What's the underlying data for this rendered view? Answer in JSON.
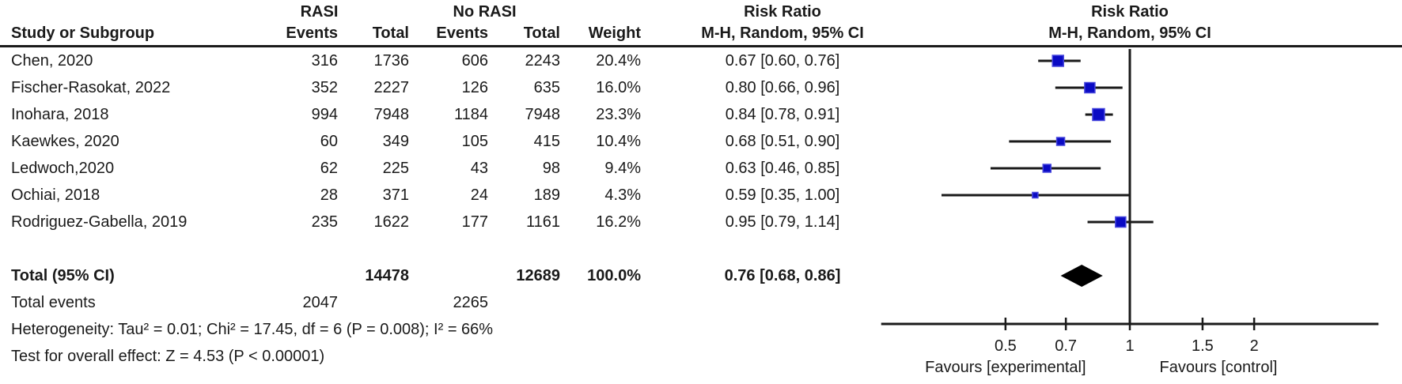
{
  "figure": {
    "headers": {
      "study_col": "Study or Subgroup",
      "group1": "RASI",
      "group2": "No RASI",
      "events": "Events",
      "total": "Total",
      "weight": "Weight",
      "rr_title": "Risk Ratio",
      "rr_method": "M-H, Random, 95% CI"
    },
    "footer": {
      "total_events_label": "Total events",
      "total_events_rasi": "2047",
      "total_events_norasi": "2265",
      "heterogeneity": "Heterogeneity: Tau² = 0.01; Chi² = 17.45, df = 6 (P = 0.008); I² = 66%",
      "overall_effect": "Test for overall effect: Z = 4.53 (P < 0.00001)"
    }
  },
  "chart_data": {
    "type": "forest",
    "effect_measure": "Risk Ratio",
    "method": "M-H, Random, 95% CI",
    "x_axis": {
      "scale": "log",
      "ticks": [
        0.5,
        0.7,
        1,
        1.5,
        2
      ],
      "range": [
        0.25,
        4
      ],
      "null_value": 1
    },
    "favours_left": "Favours [experimental]",
    "favours_right": "Favours [control]",
    "studies": [
      {
        "name": "Chen, 2020",
        "events_rasi": "316",
        "total_rasi": "1736",
        "events_norasi": "606",
        "total_norasi": "2243",
        "weight": "20.4%",
        "weight_pct": 20.4,
        "rr": 0.67,
        "ci_low": 0.6,
        "ci_high": 0.76,
        "rr_text": "0.67 [0.60, 0.76]"
      },
      {
        "name": "Fischer-Rasokat, 2022",
        "events_rasi": "352",
        "total_rasi": "2227",
        "events_norasi": "126",
        "total_norasi": "635",
        "weight": "16.0%",
        "weight_pct": 16.0,
        "rr": 0.8,
        "ci_low": 0.66,
        "ci_high": 0.96,
        "rr_text": "0.80 [0.66, 0.96]"
      },
      {
        "name": "Inohara, 2018",
        "events_rasi": "994",
        "total_rasi": "7948",
        "events_norasi": "1184",
        "total_norasi": "7948",
        "weight": "23.3%",
        "weight_pct": 23.3,
        "rr": 0.84,
        "ci_low": 0.78,
        "ci_high": 0.91,
        "rr_text": "0.84 [0.78, 0.91]"
      },
      {
        "name": "Kaewkes, 2020",
        "events_rasi": "60",
        "total_rasi": "349",
        "events_norasi": "105",
        "total_norasi": "415",
        "weight": "10.4%",
        "weight_pct": 10.4,
        "rr": 0.68,
        "ci_low": 0.51,
        "ci_high": 0.9,
        "rr_text": "0.68 [0.51, 0.90]"
      },
      {
        "name": "Ledwoch,2020",
        "events_rasi": "62",
        "total_rasi": "225",
        "events_norasi": "43",
        "total_norasi": "98",
        "weight": "9.4%",
        "weight_pct": 9.4,
        "rr": 0.63,
        "ci_low": 0.46,
        "ci_high": 0.85,
        "rr_text": "0.63 [0.46, 0.85]"
      },
      {
        "name": "Ochiai, 2018",
        "events_rasi": "28",
        "total_rasi": "371",
        "events_norasi": "24",
        "total_norasi": "189",
        "weight": "4.3%",
        "weight_pct": 4.3,
        "rr": 0.59,
        "ci_low": 0.35,
        "ci_high": 1.0,
        "rr_text": "0.59 [0.35, 1.00]"
      },
      {
        "name": "Rodriguez-Gabella, 2019",
        "events_rasi": "235",
        "total_rasi": "1622",
        "events_norasi": "177",
        "total_norasi": "1161",
        "weight": "16.2%",
        "weight_pct": 16.2,
        "rr": 0.95,
        "ci_low": 0.79,
        "ci_high": 1.14,
        "rr_text": "0.95 [0.79, 1.14]"
      }
    ],
    "total": {
      "label": "Total (95% CI)",
      "total_rasi": "14478",
      "total_norasi": "12689",
      "weight": "100.0%",
      "rr": 0.76,
      "ci_low": 0.68,
      "ci_high": 0.86,
      "rr_text": "0.76 [0.68, 0.86]"
    },
    "colors": {
      "square": "#0a0ac4",
      "square_border": "#4646dd",
      "diamond": "#000000",
      "line": "#1a1a1a"
    }
  }
}
